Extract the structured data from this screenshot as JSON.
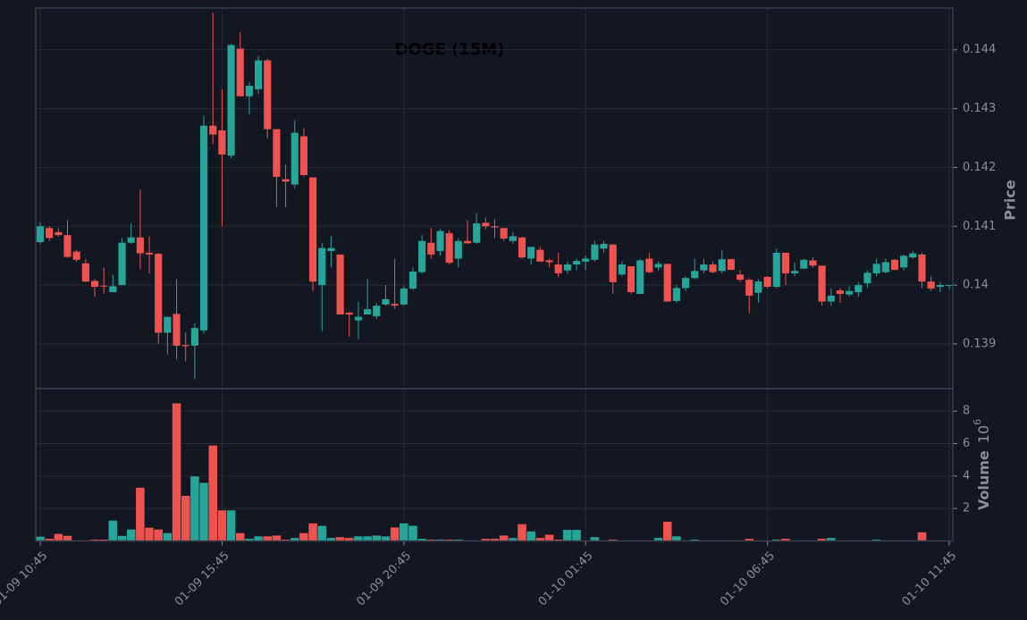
{
  "chart_data": {
    "type": "candlestick",
    "title": "DOGE (15M)",
    "categories": [
      "01-09 10:45",
      null,
      null,
      null,
      null,
      null,
      null,
      null,
      null,
      null,
      null,
      null,
      null,
      null,
      null,
      null,
      null,
      null,
      null,
      null,
      "01-09 15:45",
      null,
      null,
      null,
      null,
      null,
      null,
      null,
      null,
      null,
      null,
      null,
      null,
      null,
      null,
      null,
      null,
      null,
      null,
      null,
      "01-09 20:45",
      null,
      null,
      null,
      null,
      null,
      null,
      null,
      null,
      null,
      null,
      null,
      null,
      null,
      null,
      null,
      null,
      null,
      null,
      null,
      "01-10 01:45",
      null,
      null,
      null,
      null,
      null,
      null,
      null,
      null,
      null,
      null,
      null,
      null,
      null,
      null,
      null,
      null,
      null,
      null,
      null,
      "01-10 06:45",
      null,
      null,
      null,
      null,
      null,
      null,
      null,
      null,
      null,
      null,
      null,
      null,
      null,
      null,
      null,
      null,
      null,
      null,
      null,
      "01-10 11:45"
    ],
    "open": [
      0.14073,
      0.14097,
      0.1409,
      0.14085,
      0.14057,
      0.14037,
      0.14007,
      0.13999,
      0.13988,
      0.14,
      0.14072,
      0.14081,
      0.14055,
      0.14053,
      0.13919,
      0.13951,
      0.13898,
      0.13897,
      0.13923,
      0.14271,
      0.14263,
      0.1422,
      0.14402,
      0.14321,
      0.14333,
      0.14382,
      0.14265,
      0.1418,
      0.14171,
      0.14253,
      0.14183,
      0.14,
      0.14058,
      0.14052,
      0.13953,
      0.1394,
      0.1395,
      0.13947,
      0.13967,
      0.13968,
      0.13967,
      0.13994,
      0.14022,
      0.14072,
      0.14058,
      0.14088,
      0.14045,
      0.14075,
      0.14072,
      0.14106,
      0.141,
      0.14097,
      0.14075,
      0.14081,
      0.14045,
      0.1406,
      0.14042,
      0.14035,
      0.14025,
      0.14035,
      0.1404,
      0.14043,
      0.14062,
      0.14069,
      0.14018,
      0.14032,
      0.13985,
      0.14045,
      0.1403,
      0.14036,
      0.13973,
      0.13995,
      0.14012,
      0.14025,
      0.14035,
      0.14024,
      0.14044,
      0.14018,
      0.14009,
      0.13987,
      0.14014,
      0.13997,
      0.14055,
      0.1402,
      0.14028,
      0.14042,
      0.14033,
      0.13972,
      0.13991,
      0.13984,
      0.13988,
      0.14003,
      0.1402,
      0.14022,
      0.14043,
      0.1403,
      0.14047,
      0.14052,
      0.14006,
      0.13997,
      0.13999
    ],
    "high": [
      0.14107,
      0.141,
      0.14097,
      0.1411,
      0.1406,
      0.14045,
      0.1401,
      0.1403,
      0.14018,
      0.1408,
      0.14105,
      0.14162,
      0.14083,
      0.14055,
      0.13946,
      0.1401,
      0.1392,
      0.13935,
      0.14288,
      0.14463,
      0.14333,
      0.1441,
      0.1443,
      0.14345,
      0.1439,
      0.14385,
      0.14265,
      0.14205,
      0.1428,
      0.14267,
      0.14183,
      0.14072,
      0.14083,
      0.14052,
      0.13955,
      0.13972,
      0.1401,
      0.1397,
      0.14,
      0.14045,
      0.13998,
      0.1403,
      0.14085,
      0.14097,
      0.14095,
      0.14093,
      0.1408,
      0.1411,
      0.14122,
      0.14115,
      0.14112,
      0.14097,
      0.1409,
      0.14082,
      0.14065,
      0.14065,
      0.14045,
      0.14055,
      0.1404,
      0.14045,
      0.1405,
      0.14075,
      0.14075,
      0.14069,
      0.1404,
      0.14032,
      0.14045,
      0.14055,
      0.1404,
      0.14036,
      0.14,
      0.14015,
      0.14045,
      0.14045,
      0.1404,
      0.1406,
      0.14045,
      0.14025,
      0.14012,
      0.1401,
      0.14015,
      0.14062,
      0.14055,
      0.14038,
      0.14045,
      0.14047,
      0.14033,
      0.13995,
      0.13995,
      0.13998,
      0.14005,
      0.14025,
      0.14045,
      0.14045,
      0.14045,
      0.14052,
      0.14058,
      0.14055,
      0.14015,
      0.14005,
      0.14
    ],
    "low": [
      0.1407,
      0.14075,
      0.14082,
      0.14046,
      0.1404,
      0.14005,
      0.1398,
      0.13985,
      0.13988,
      0.14,
      0.1407,
      0.14027,
      0.1402,
      0.139,
      0.13882,
      0.13874,
      0.1387,
      0.1384,
      0.13918,
      0.1424,
      0.141,
      0.14215,
      0.1432,
      0.1429,
      0.14325,
      0.1425,
      0.14133,
      0.14132,
      0.14165,
      0.14185,
      0.1399,
      0.13922,
      0.1403,
      0.1395,
      0.13912,
      0.13908,
      0.1395,
      0.13942,
      0.13965,
      0.1396,
      0.13965,
      0.13992,
      0.1402,
      0.14045,
      0.1405,
      0.14035,
      0.1403,
      0.1407,
      0.1407,
      0.14095,
      0.1408,
      0.14075,
      0.1407,
      0.14045,
      0.14035,
      0.1404,
      0.1403,
      0.14013,
      0.1402,
      0.14025,
      0.14025,
      0.1404,
      0.14055,
      0.13985,
      0.14015,
      0.13985,
      0.13985,
      0.1402,
      0.14025,
      0.13972,
      0.1397,
      0.1399,
      0.1401,
      0.1402,
      0.1402,
      0.1402,
      0.14025,
      0.14005,
      0.13952,
      0.1397,
      0.13995,
      0.13995,
      0.14,
      0.14015,
      0.14027,
      0.1403,
      0.13965,
      0.13965,
      0.1397,
      0.1398,
      0.1398,
      0.13995,
      0.14015,
      0.1402,
      0.14025,
      0.14025,
      0.14045,
      0.13995,
      0.1399,
      0.13988,
      0.13993
    ],
    "close": [
      0.141,
      0.1408,
      0.14085,
      0.14048,
      0.14043,
      0.14006,
      0.13997,
      0.13998,
      0.13998,
      0.14072,
      0.14081,
      0.14054,
      0.14052,
      0.13919,
      0.13946,
      0.13897,
      0.13896,
      0.13927,
      0.14271,
      0.14256,
      0.14222,
      0.14408,
      0.14321,
      0.14339,
      0.14382,
      0.14265,
      0.14184,
      0.14176,
      0.14259,
      0.14187,
      0.14006,
      0.14063,
      0.14063,
      0.1395,
      0.1395,
      0.13946,
      0.13959,
      0.13965,
      0.13976,
      0.13965,
      0.13994,
      0.14023,
      0.14075,
      0.14052,
      0.14092,
      0.14038,
      0.14075,
      0.14071,
      0.14105,
      0.141,
      0.14098,
      0.14079,
      0.14083,
      0.14047,
      0.14065,
      0.1404,
      0.14039,
      0.1402,
      0.14035,
      0.14041,
      0.14045,
      0.14069,
      0.1407,
      0.14005,
      0.14035,
      0.13988,
      0.14042,
      0.14022,
      0.14036,
      0.13972,
      0.13995,
      0.14012,
      0.14024,
      0.14035,
      0.14022,
      0.14044,
      0.14026,
      0.14009,
      0.13982,
      0.14006,
      0.13997,
      0.14055,
      0.1402,
      0.14024,
      0.14043,
      0.14033,
      0.13972,
      0.13982,
      0.13985,
      0.1399,
      0.14,
      0.14021,
      0.14036,
      0.14039,
      0.14026,
      0.1405,
      0.14054,
      0.14006,
      0.13994,
      0.14,
      0.14
    ],
    "up_color": "#26a69a",
    "down_color": "#ef5350",
    "ylim": [
      0.13824,
      0.14471
    ],
    "yticks": [
      0.139,
      0.14,
      0.141,
      0.142,
      0.143,
      0.144
    ],
    "ylabel": "Price",
    "grid": true,
    "volume": {
      "label": "Volume",
      "offset_base": "10",
      "offset_exponent": "6",
      "values": [
        0.28,
        0.15,
        0.45,
        0.33,
        0.05,
        0.05,
        0.1,
        0.1,
        1.27,
        0.33,
        0.72,
        3.3,
        0.83,
        0.72,
        0.5,
        8.5,
        2.8,
        4.0,
        3.6,
        5.9,
        1.9,
        1.9,
        0.5,
        0.15,
        0.3,
        0.3,
        0.35,
        0.1,
        0.2,
        0.5,
        1.1,
        0.95,
        0.2,
        0.25,
        0.2,
        0.3,
        0.3,
        0.35,
        0.3,
        0.85,
        1.1,
        0.95,
        0.15,
        0.1,
        0.1,
        0.1,
        0.1,
        0.05,
        0.05,
        0.15,
        0.15,
        0.35,
        0.2,
        1.05,
        0.6,
        0.2,
        0.4,
        0.1,
        0.7,
        0.7,
        0.05,
        0.25,
        0.05,
        0.1,
        0.05,
        0.03,
        0.03,
        0.03,
        0.2,
        1.2,
        0.3,
        0.03,
        0.1,
        0.03,
        0.03,
        0.03,
        0.03,
        0.05,
        0.15,
        0.03,
        0.03,
        0.1,
        0.15,
        0.05,
        0.05,
        0.05,
        0.15,
        0.2,
        0.05,
        0.05,
        0.05,
        0.05,
        0.1,
        0.05,
        0.05,
        0.05,
        0.05,
        0.55,
        0.05,
        0.03,
        0.03
      ],
      "ylim": [
        0,
        9.39
      ],
      "yticks": [
        2,
        4,
        6,
        8
      ]
    }
  }
}
